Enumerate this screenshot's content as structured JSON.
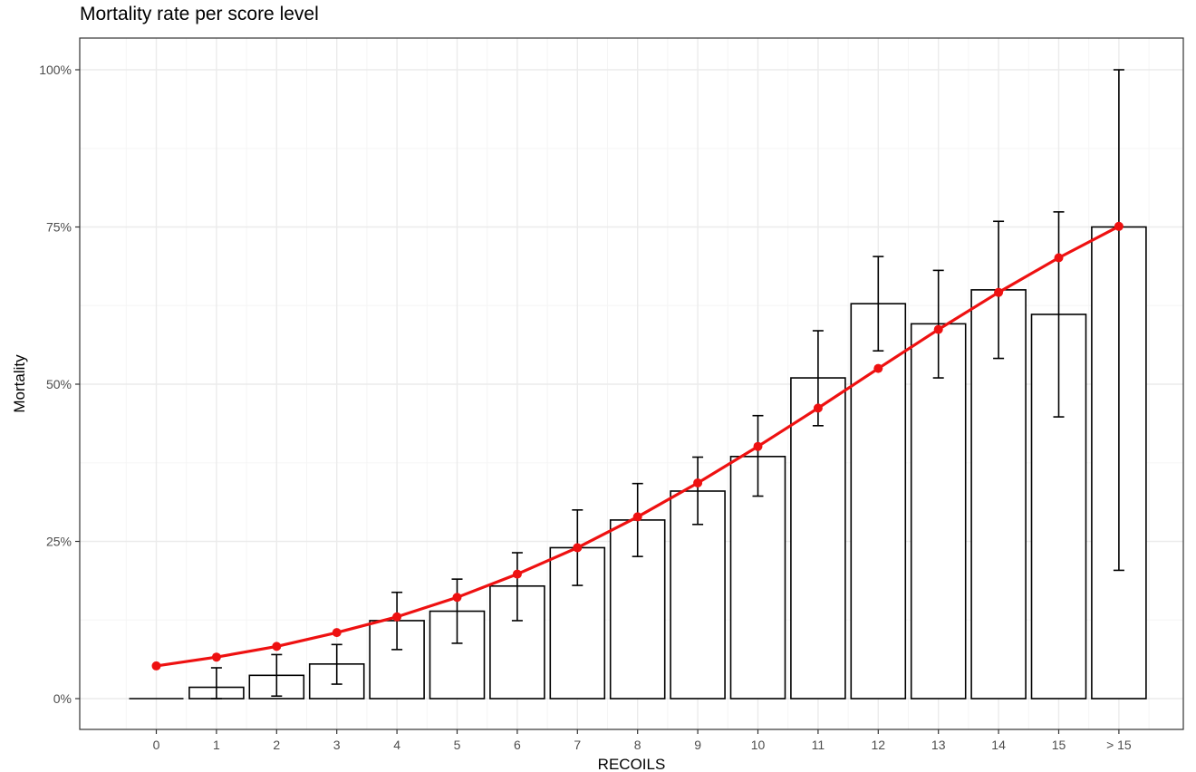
{
  "chart_data": {
    "type": "bar",
    "title": "Mortality rate per score level",
    "xlabel": "RECOILS",
    "ylabel": "Mortality",
    "categories": [
      "0",
      "1",
      "2",
      "3",
      "4",
      "5",
      "6",
      "7",
      "8",
      "9",
      "10",
      "11",
      "12",
      "13",
      "14",
      "15",
      "> 15"
    ],
    "y_tick_labels": [
      "0%",
      "25%",
      "50%",
      "75%",
      "100%"
    ],
    "y_tick_values": [
      0,
      0.25,
      0.5,
      0.75,
      1.0
    ],
    "ylim": [
      -0.05,
      1.05
    ],
    "grid": true,
    "series": [
      {
        "kind": "bar",
        "values": [
          0.0,
          0.018,
          0.037,
          0.055,
          0.124,
          0.139,
          0.179,
          0.24,
          0.284,
          0.33,
          0.385,
          0.51,
          0.628,
          0.596,
          0.65,
          0.611,
          0.75
        ],
        "error_low": [
          null,
          0.0,
          0.004,
          0.023,
          0.078,
          0.088,
          0.124,
          0.18,
          0.226,
          0.277,
          0.322,
          0.434,
          0.553,
          0.51,
          0.541,
          0.448,
          0.204
        ],
        "error_high": [
          null,
          0.049,
          0.07,
          0.086,
          0.169,
          0.19,
          0.232,
          0.3,
          0.342,
          0.384,
          0.45,
          0.585,
          0.703,
          0.681,
          0.759,
          0.774,
          1.0
        ],
        "fill": "#ffffff",
        "stroke": "#000000"
      },
      {
        "kind": "line",
        "values": [
          0.052,
          0.066,
          0.083,
          0.105,
          0.13,
          0.161,
          0.198,
          0.24,
          0.289,
          0.343,
          0.401,
          0.462,
          0.525,
          0.587,
          0.646,
          0.701,
          0.751
        ],
        "color": "#ee1111"
      }
    ],
    "colors": {
      "panel_border": "#333333",
      "grid_major": "#ebebeb",
      "grid_minor": "#f5f5f5",
      "line": "#ee1111"
    }
  }
}
